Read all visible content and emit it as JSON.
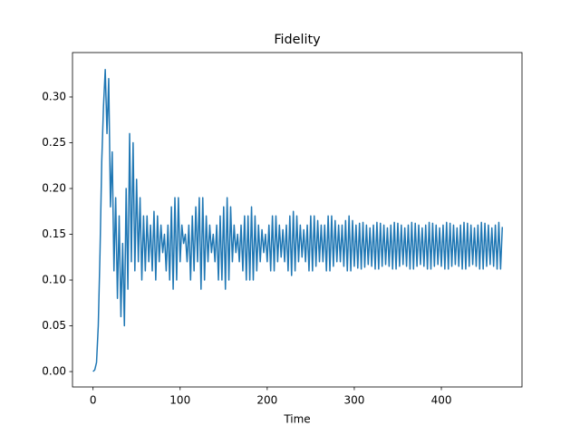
{
  "chart_data": {
    "type": "line",
    "title": "Fidelity",
    "x_label": "Time",
    "color": "#1f77b4",
    "xlim": [
      -23.6,
      492.6
    ],
    "ylim": [
      -0.0168,
      0.3485
    ],
    "xticks": [
      0,
      100,
      200,
      300,
      400
    ],
    "yticks": [
      {
        "value": 0,
        "label": "0.00"
      },
      {
        "value": 0.05,
        "label": "0.05"
      },
      {
        "value": 0.1,
        "label": "0.10"
      },
      {
        "value": 0.15,
        "label": "0.15"
      },
      {
        "value": 0.2,
        "label": "0.20"
      },
      {
        "value": 0.25,
        "label": "0.25"
      },
      {
        "value": 0.3,
        "label": "0.30"
      }
    ],
    "x": [
      0,
      2,
      4,
      6,
      8,
      10,
      12,
      14,
      16,
      18,
      20,
      22,
      24,
      26,
      28,
      30,
      32,
      34,
      36,
      38,
      40,
      42,
      44,
      46,
      48,
      50,
      52,
      54,
      56,
      58,
      60,
      62,
      64,
      66,
      68,
      70,
      72,
      74,
      76,
      78,
      80,
      82,
      84,
      86,
      88,
      90,
      92,
      94,
      96,
      98,
      100,
      102,
      104,
      106,
      108,
      110,
      112,
      114,
      116,
      118,
      120,
      122,
      124,
      126,
      128,
      130,
      132,
      134,
      136,
      138,
      140,
      142,
      144,
      146,
      148,
      150,
      152,
      154,
      156,
      158,
      160,
      162,
      164,
      166,
      168,
      170,
      172,
      174,
      176,
      178,
      180,
      182,
      184,
      186,
      188,
      190,
      192,
      194,
      196,
      198,
      200,
      202,
      204,
      206,
      208,
      210,
      212,
      214,
      216,
      218,
      220,
      222,
      224,
      226,
      228,
      230,
      232,
      234,
      236,
      238,
      240,
      242,
      244,
      246,
      248,
      250,
      252,
      254,
      256,
      258,
      260,
      262,
      264,
      266,
      268,
      270,
      272,
      274,
      276,
      278,
      280,
      282,
      284,
      286,
      288,
      290,
      292,
      294,
      296,
      298,
      300,
      302,
      304,
      306,
      308,
      310,
      312,
      314,
      316,
      318,
      320,
      322,
      324,
      326,
      328,
      330,
      332,
      334,
      336,
      338,
      340,
      342,
      344,
      346,
      348,
      350,
      352,
      354,
      356,
      358,
      360,
      362,
      364,
      366,
      368,
      370,
      372,
      374,
      376,
      378,
      380,
      382,
      384,
      386,
      388,
      390,
      392,
      394,
      396,
      398,
      400,
      402,
      404,
      406,
      408,
      410,
      412,
      414,
      416,
      418,
      420,
      422,
      424,
      426,
      428,
      430,
      432,
      434,
      436,
      438,
      440,
      442,
      444,
      446,
      448,
      450,
      452,
      454,
      456,
      458,
      460,
      462,
      464,
      466,
      468,
      470
    ],
    "values": [
      0,
      0.002,
      0.01,
      0.05,
      0.13,
      0.23,
      0.29,
      0.33,
      0.26,
      0.32,
      0.18,
      0.24,
      0.11,
      0.19,
      0.08,
      0.17,
      0.06,
      0.14,
      0.05,
      0.2,
      0.09,
      0.26,
      0.12,
      0.25,
      0.11,
      0.21,
      0.12,
      0.19,
      0.1,
      0.17,
      0.11,
      0.17,
      0.12,
      0.16,
      0.11,
      0.175,
      0.1,
      0.17,
      0.12,
      0.16,
      0.13,
      0.15,
      0.11,
      0.16,
      0.1,
      0.18,
      0.09,
      0.19,
      0.1,
      0.19,
      0.12,
      0.16,
      0.14,
      0.15,
      0.12,
      0.16,
      0.1,
      0.17,
      0.11,
      0.18,
      0.12,
      0.19,
      0.09,
      0.19,
      0.1,
      0.17,
      0.12,
      0.16,
      0.13,
      0.15,
      0.12,
      0.16,
      0.1,
      0.17,
      0.1,
      0.18,
      0.09,
      0.19,
      0.1,
      0.18,
      0.12,
      0.16,
      0.13,
      0.15,
      0.12,
      0.16,
      0.11,
      0.17,
      0.1,
      0.17,
      0.1,
      0.18,
      0.1,
      0.17,
      0.11,
      0.16,
      0.12,
      0.155,
      0.13,
      0.15,
      0.12,
      0.16,
      0.11,
      0.17,
      0.11,
      0.17,
      0.12,
      0.16,
      0.125,
      0.155,
      0.12,
      0.16,
      0.11,
      0.17,
      0.105,
      0.175,
      0.11,
      0.17,
      0.12,
      0.16,
      0.125,
      0.155,
      0.12,
      0.16,
      0.11,
      0.17,
      0.11,
      0.17,
      0.115,
      0.165,
      0.12,
      0.16,
      0.12,
      0.16,
      0.11,
      0.17,
      0.11,
      0.17,
      0.115,
      0.165,
      0.12,
      0.16,
      0.12,
      0.16,
      0.115,
      0.165,
      0.11,
      0.17,
      0.11,
      0.165,
      0.115,
      0.16,
      0.113,
      0.162,
      0.112,
      0.163,
      0.114,
      0.16,
      0.117,
      0.157,
      0.115,
      0.16,
      0.112,
      0.163,
      0.112,
      0.162,
      0.115,
      0.16,
      0.117,
      0.157,
      0.115,
      0.16,
      0.112,
      0.163,
      0.112,
      0.162,
      0.115,
      0.16,
      0.117,
      0.157,
      0.115,
      0.16,
      0.112,
      0.163,
      0.112,
      0.162,
      0.115,
      0.16,
      0.117,
      0.157,
      0.115,
      0.16,
      0.112,
      0.163,
      0.112,
      0.162,
      0.115,
      0.16,
      0.117,
      0.157,
      0.115,
      0.16,
      0.112,
      0.163,
      0.112,
      0.162,
      0.115,
      0.16,
      0.117,
      0.157,
      0.115,
      0.16,
      0.112,
      0.163,
      0.112,
      0.162,
      0.115,
      0.16,
      0.117,
      0.157,
      0.115,
      0.16,
      0.112,
      0.163,
      0.112,
      0.162,
      0.115,
      0.16,
      0.117,
      0.157,
      0.115,
      0.16,
      0.112,
      0.163,
      0.112,
      0.158
    ]
  }
}
